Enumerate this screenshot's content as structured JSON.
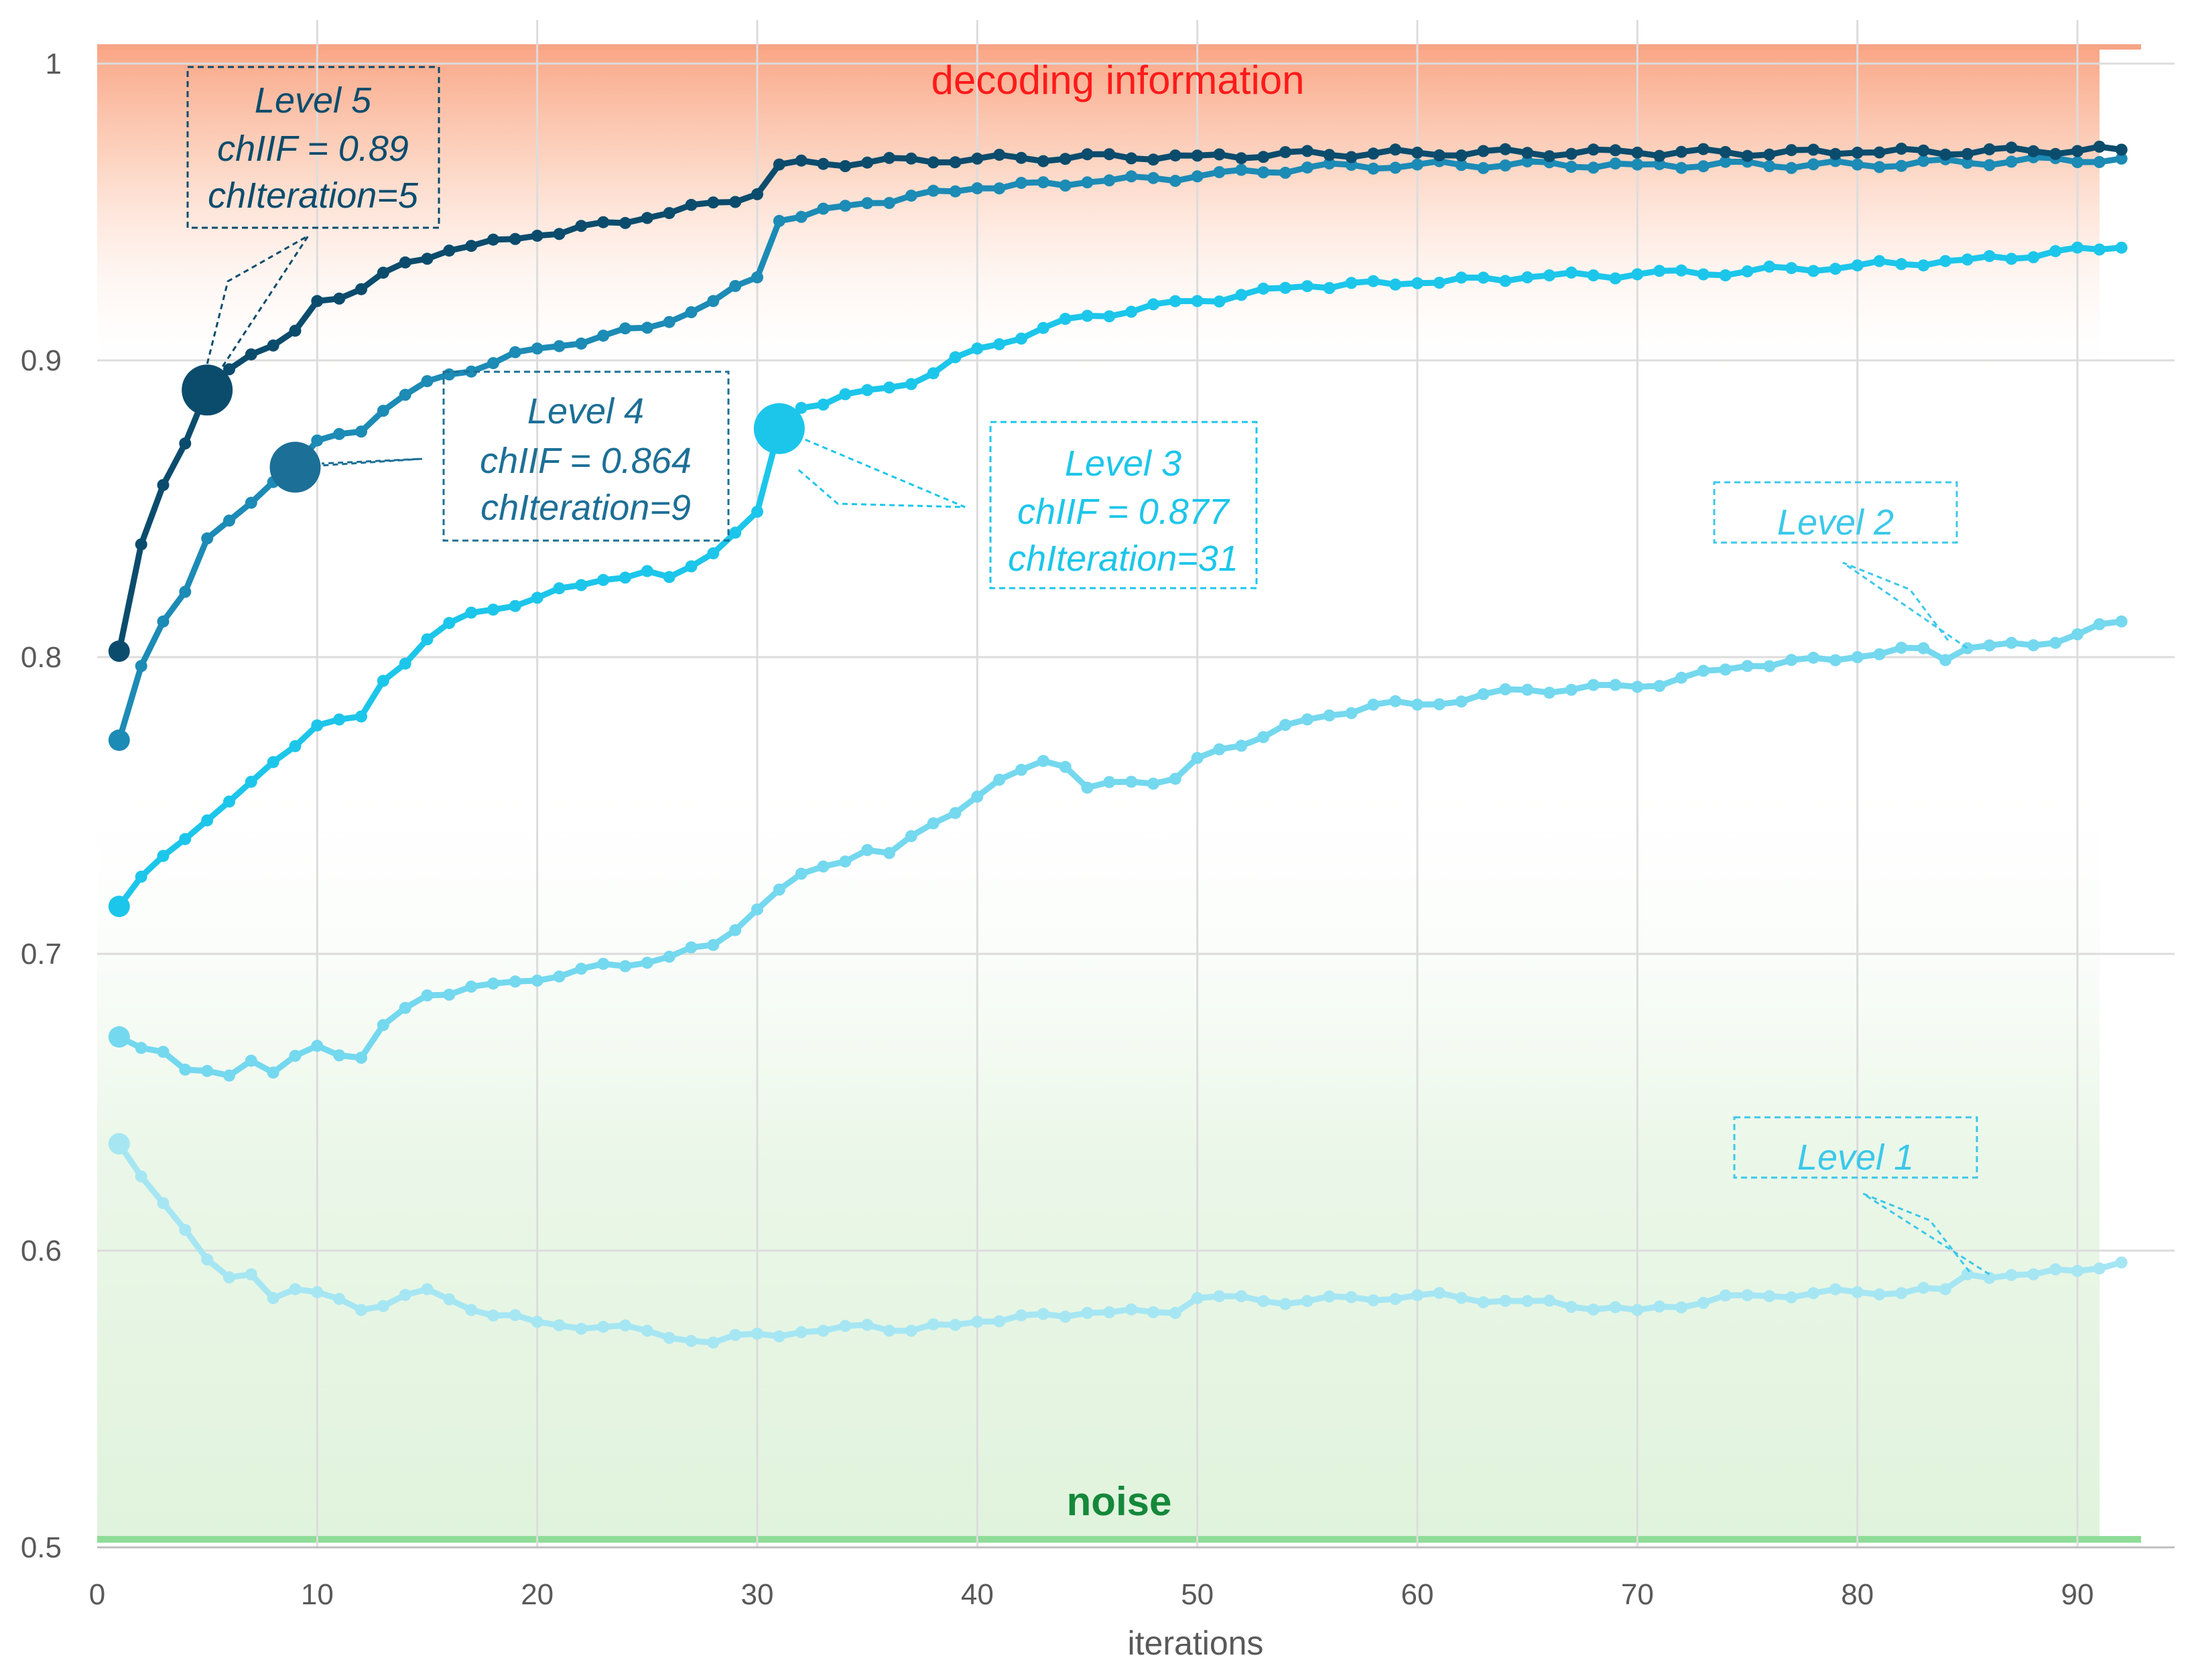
{
  "chart_data": {
    "type": "line",
    "title": "",
    "xlabel": "iterations",
    "ylabel": "",
    "xlim": [
      0,
      93
    ],
    "ylim": [
      0.5,
      1
    ],
    "x_ticks": [
      "0",
      "10",
      "20",
      "30",
      "40",
      "50",
      "60",
      "70",
      "80",
      "90"
    ],
    "y_ticks": [
      "0.5",
      "0.6",
      "0.7",
      "0.8",
      "0.9",
      "1"
    ],
    "grid": true,
    "bands": {
      "top_label": "decoding information",
      "bottom_label": "noise"
    },
    "series": [
      {
        "name": "Level 1",
        "color": "#a6e6f3",
        "anchors": [
          [
            1,
            0.636
          ],
          [
            2,
            0.625
          ],
          [
            3,
            0.616
          ],
          [
            4,
            0.607
          ],
          [
            5,
            0.597
          ],
          [
            6,
            0.591
          ],
          [
            7,
            0.592
          ],
          [
            8,
            0.584
          ],
          [
            9,
            0.587
          ],
          [
            10,
            0.586
          ],
          [
            12,
            0.58
          ],
          [
            15,
            0.587
          ],
          [
            17,
            0.58
          ],
          [
            20,
            0.576
          ],
          [
            25,
            0.573
          ],
          [
            28,
            0.569
          ],
          [
            30,
            0.572
          ],
          [
            33,
            0.573
          ],
          [
            35,
            0.575
          ],
          [
            37,
            0.573
          ],
          [
            40,
            0.576
          ],
          [
            45,
            0.579
          ],
          [
            49,
            0.579
          ],
          [
            50,
            0.584
          ],
          [
            55,
            0.583
          ],
          [
            60,
            0.585
          ],
          [
            65,
            0.583
          ],
          [
            70,
            0.58
          ],
          [
            75,
            0.585
          ],
          [
            80,
            0.586
          ],
          [
            84,
            0.587
          ],
          [
            85,
            0.592
          ],
          [
            88,
            0.592
          ],
          [
            92,
            0.596
          ]
        ]
      },
      {
        "name": "Level 2",
        "color": "#74d8ee",
        "anchors": [
          [
            1,
            0.672
          ],
          [
            3,
            0.667
          ],
          [
            4,
            0.661
          ],
          [
            6,
            0.659
          ],
          [
            7,
            0.664
          ],
          [
            8,
            0.66
          ],
          [
            10,
            0.669
          ],
          [
            12,
            0.665
          ],
          [
            13,
            0.676
          ],
          [
            15,
            0.686
          ],
          [
            18,
            0.69
          ],
          [
            20,
            0.691
          ],
          [
            22,
            0.695
          ],
          [
            25,
            0.697
          ],
          [
            28,
            0.703
          ],
          [
            30,
            0.715
          ],
          [
            32,
            0.727
          ],
          [
            35,
            0.735
          ],
          [
            36,
            0.734
          ],
          [
            38,
            0.744
          ],
          [
            40,
            0.753
          ],
          [
            42,
            0.762
          ],
          [
            43,
            0.765
          ],
          [
            44,
            0.763
          ],
          [
            45,
            0.756
          ],
          [
            47,
            0.758
          ],
          [
            49,
            0.759
          ],
          [
            50,
            0.766
          ],
          [
            55,
            0.779
          ],
          [
            58,
            0.784
          ],
          [
            60,
            0.784
          ],
          [
            65,
            0.789
          ],
          [
            70,
            0.79
          ],
          [
            75,
            0.797
          ],
          [
            80,
            0.8
          ],
          [
            83,
            0.803
          ],
          [
            84,
            0.799
          ],
          [
            85,
            0.803
          ],
          [
            88,
            0.804
          ],
          [
            92,
            0.812
          ]
        ]
      },
      {
        "name": "Level 3",
        "color": "#1cc6ea",
        "anchors": [
          [
            1,
            0.716
          ],
          [
            2,
            0.726
          ],
          [
            3,
            0.733
          ],
          [
            5,
            0.745
          ],
          [
            7,
            0.758
          ],
          [
            9,
            0.77
          ],
          [
            10,
            0.777
          ],
          [
            12,
            0.78
          ],
          [
            13,
            0.792
          ],
          [
            15,
            0.806
          ],
          [
            17,
            0.815
          ],
          [
            20,
            0.82
          ],
          [
            23,
            0.826
          ],
          [
            25,
            0.829
          ],
          [
            26,
            0.827
          ],
          [
            28,
            0.835
          ],
          [
            30,
            0.849
          ],
          [
            31,
            0.877
          ],
          [
            32,
            0.884
          ],
          [
            35,
            0.89
          ],
          [
            37,
            0.892
          ],
          [
            40,
            0.904
          ],
          [
            45,
            0.915
          ],
          [
            50,
            0.92
          ],
          [
            55,
            0.925
          ],
          [
            60,
            0.926
          ],
          [
            65,
            0.928
          ],
          [
            70,
            0.929
          ],
          [
            75,
            0.93
          ],
          [
            80,
            0.932
          ],
          [
            85,
            0.934
          ],
          [
            92,
            0.938
          ]
        ]
      },
      {
        "name": "Level 4",
        "color": "#1c8bb5",
        "anchors": [
          [
            1,
            0.772
          ],
          [
            2,
            0.797
          ],
          [
            3,
            0.812
          ],
          [
            4,
            0.822
          ],
          [
            5,
            0.84
          ],
          [
            6,
            0.846
          ],
          [
            7,
            0.852
          ],
          [
            8,
            0.859
          ],
          [
            9,
            0.864
          ],
          [
            10,
            0.873
          ],
          [
            12,
            0.876
          ],
          [
            13,
            0.883
          ],
          [
            15,
            0.893
          ],
          [
            20,
            0.904
          ],
          [
            25,
            0.911
          ],
          [
            28,
            0.92
          ],
          [
            30,
            0.928
          ],
          [
            31,
            0.947
          ],
          [
            35,
            0.953
          ],
          [
            40,
            0.958
          ],
          [
            45,
            0.96
          ],
          [
            50,
            0.962
          ],
          [
            55,
            0.965
          ],
          [
            60,
            0.966
          ],
          [
            70,
            0.966
          ],
          [
            80,
            0.966
          ],
          [
            92,
            0.968
          ]
        ]
      },
      {
        "name": "Level 5",
        "color": "#0b4c6d",
        "anchors": [
          [
            1,
            0.802
          ],
          [
            2,
            0.838
          ],
          [
            3,
            0.858
          ],
          [
            4,
            0.872
          ],
          [
            5,
            0.89
          ],
          [
            6,
            0.897
          ],
          [
            7,
            0.902
          ],
          [
            8,
            0.905
          ],
          [
            9,
            0.91
          ],
          [
            10,
            0.92
          ],
          [
            12,
            0.924
          ],
          [
            14,
            0.933
          ],
          [
            16,
            0.937
          ],
          [
            20,
            0.942
          ],
          [
            25,
            0.948
          ],
          [
            30,
            0.956
          ],
          [
            31,
            0.966
          ],
          [
            40,
            0.968
          ],
          [
            50,
            0.969
          ],
          [
            60,
            0.97
          ],
          [
            70,
            0.97
          ],
          [
            80,
            0.97
          ],
          [
            92,
            0.971
          ]
        ]
      }
    ],
    "annotations": [
      {
        "series": "Level 5",
        "title": "Level 5",
        "chiif": "chIIF = 0.89",
        "iteration": "chIteration=5",
        "x": 5,
        "y": 0.89,
        "color": "#0b4c6d"
      },
      {
        "series": "Level 4",
        "title": "Level 4",
        "chiif": "chIIF = 0.864",
        "iteration": "chIteration=9",
        "x": 9,
        "y": 0.864,
        "color": "#1c6f96"
      },
      {
        "series": "Level 3",
        "title": "Level 3",
        "chiif": "chIIF = 0.877",
        "iteration": "chIteration=31",
        "x": 31,
        "y": 0.877,
        "color": "#1cc6ea"
      },
      {
        "series": "Level 2",
        "title": "Level 2",
        "x": 85,
        "y": 0.803,
        "color": "#3cc8ea"
      },
      {
        "series": "Level 1",
        "title": "Level 1",
        "x": 86,
        "y": 0.592,
        "color": "#3cc8ea"
      }
    ]
  }
}
